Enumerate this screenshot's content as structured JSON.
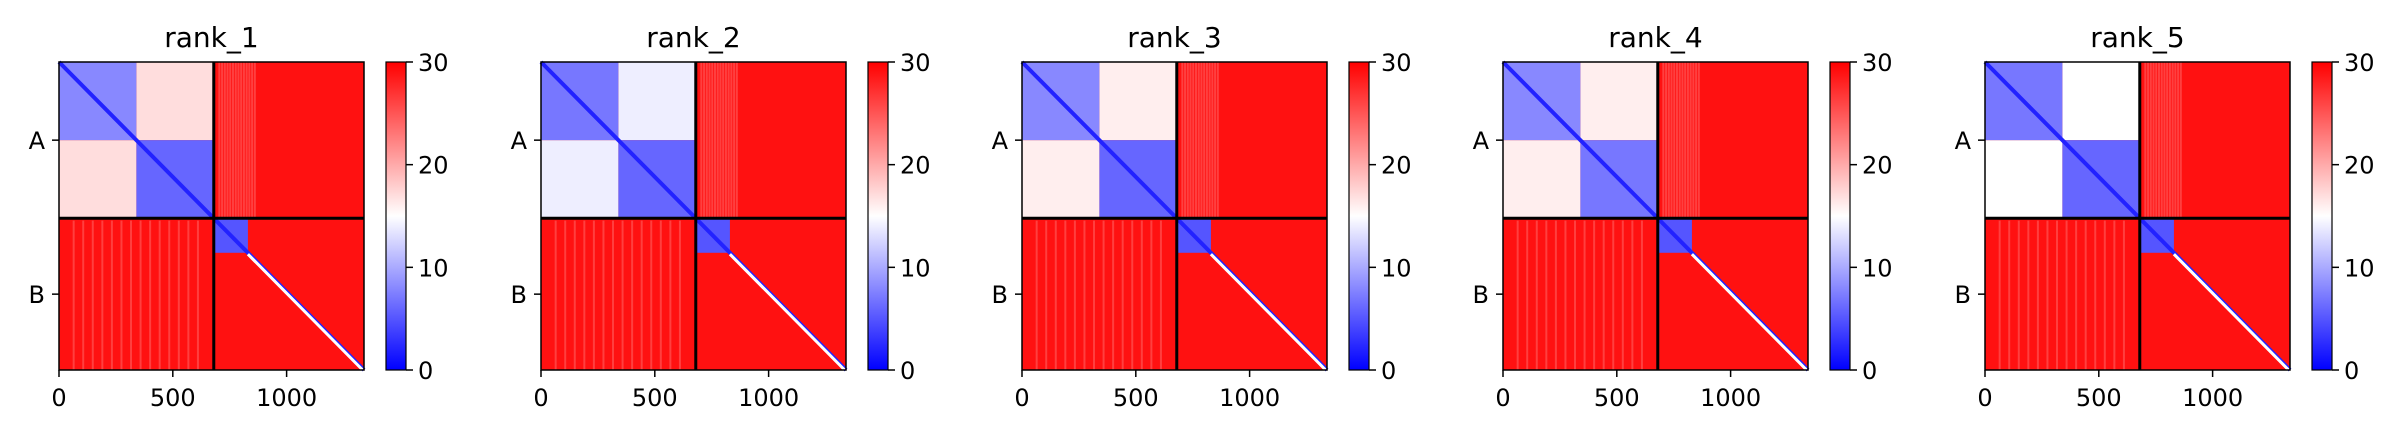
{
  "chart_data": {
    "type": "heatmap",
    "description": "Predicted aligned error (PAE) matrices for five model ranks; two chains A and B",
    "colormap": {
      "name": "bwr",
      "min_color": "#0000ff",
      "mid_color": "#ffffff",
      "max_color": "#ff0000"
    },
    "vmin": 0,
    "vmax": 30,
    "colorbar_ticks": [
      "0",
      "10",
      "20",
      "30"
    ],
    "x_ticks": [
      {
        "value": 0,
        "label": "0"
      },
      {
        "value": 500,
        "label": "500"
      },
      {
        "value": 1000,
        "label": "1000"
      }
    ],
    "y_ticks": [
      "A",
      "B"
    ],
    "n_residues": 1340,
    "chain_boundary": 680,
    "chains": [
      {
        "name": "A",
        "start": 0,
        "end": 680,
        "domain_split": 340
      },
      {
        "name": "B",
        "start": 680,
        "end": 1340,
        "core_end": 830
      }
    ],
    "panels": [
      {
        "title": "rank_1",
        "blocks": {
          "A_domain1": 8,
          "A_domain2": 6,
          "A_interdomain": 17,
          "B_core": 5,
          "A_B_interchain": 29,
          "B_tail": 30
        }
      },
      {
        "title": "rank_2",
        "blocks": {
          "A_domain1": 7,
          "A_domain2": 6,
          "A_interdomain": 14,
          "B_core": 5,
          "A_B_interchain": 29,
          "B_tail": 30
        }
      },
      {
        "title": "rank_3",
        "blocks": {
          "A_domain1": 8,
          "A_domain2": 6,
          "A_interdomain": 16,
          "B_core": 5,
          "A_B_interchain": 29,
          "B_tail": 30
        }
      },
      {
        "title": "rank_4",
        "blocks": {
          "A_domain1": 8,
          "A_domain2": 7,
          "A_interdomain": 16,
          "B_core": 5,
          "A_B_interchain": 29,
          "B_tail": 30
        }
      },
      {
        "title": "rank_5",
        "blocks": {
          "A_domain1": 7,
          "A_domain2": 6,
          "A_interdomain": 15,
          "B_core": 5,
          "A_B_interchain": 29,
          "B_tail": 30
        }
      }
    ]
  }
}
